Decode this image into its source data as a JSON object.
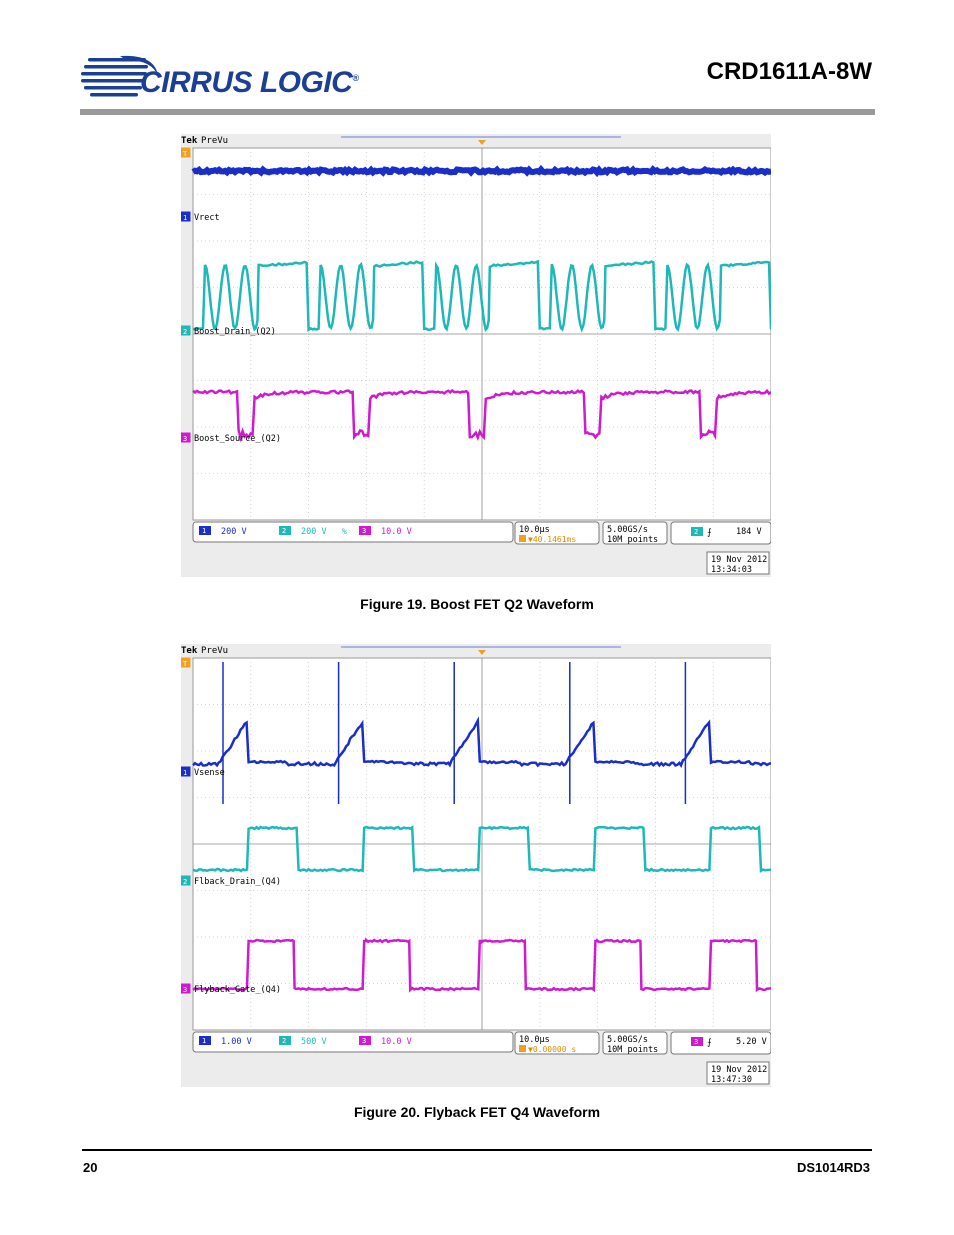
{
  "header": {
    "logo_text": "CIRRUS LOGIC",
    "logo_reg": "®",
    "doc_title": "CRD1611A-8W"
  },
  "figures": [
    {
      "caption": "Figure 19.  Boost FET Q2 Waveform",
      "scope": {
        "brand": "Tek",
        "mode": "PreVu",
        "channels": [
          {
            "num": "1",
            "label": "Vrect",
            "scale": "200 V",
            "color": "#1a2ec8"
          },
          {
            "num": "2",
            "label": "Boost_Drain_(Q2)",
            "scale": "200 V",
            "color": "#1fb8b8"
          },
          {
            "num": "3",
            "label": "Boost_Source_(Q2)",
            "scale": "10.0 V",
            "color": "#d01ad0"
          }
        ],
        "bw_mark": "%",
        "timebase": "10.0µs",
        "trigger_offset": "▼40.1461ms",
        "sample_rate": "5.00GS/s",
        "record_length": "10M points",
        "trigger_channel": "2",
        "trigger_level": "184 V",
        "date": "19 Nov 2012",
        "time": "13:34:03"
      }
    },
    {
      "caption": "Figure 20.  Flyback FET Q4 Waveform",
      "scope": {
        "brand": "Tek",
        "mode": "PreVu",
        "channels": [
          {
            "num": "1",
            "label": "Vsense",
            "scale": "1.00 V",
            "color": "#1a2ec8"
          },
          {
            "num": "2",
            "label": "Flback_Drain_(Q4)",
            "scale": "500 V",
            "color": "#1fb8b8"
          },
          {
            "num": "3",
            "label": "Flyback_Gate_(Q4)",
            "scale": "10.0 V",
            "color": "#d01ad0"
          }
        ],
        "bw_mark": "",
        "timebase": "10.0µs",
        "trigger_offset": "▼0.00000 s",
        "sample_rate": "5.00GS/s",
        "record_length": "10M points",
        "trigger_channel": "3",
        "trigger_level": "5.20 V",
        "date": "19 Nov 2012",
        "time": "13:47:30"
      }
    }
  ],
  "footer": {
    "page_number": "20",
    "doc_id": "DS1014RD3"
  }
}
